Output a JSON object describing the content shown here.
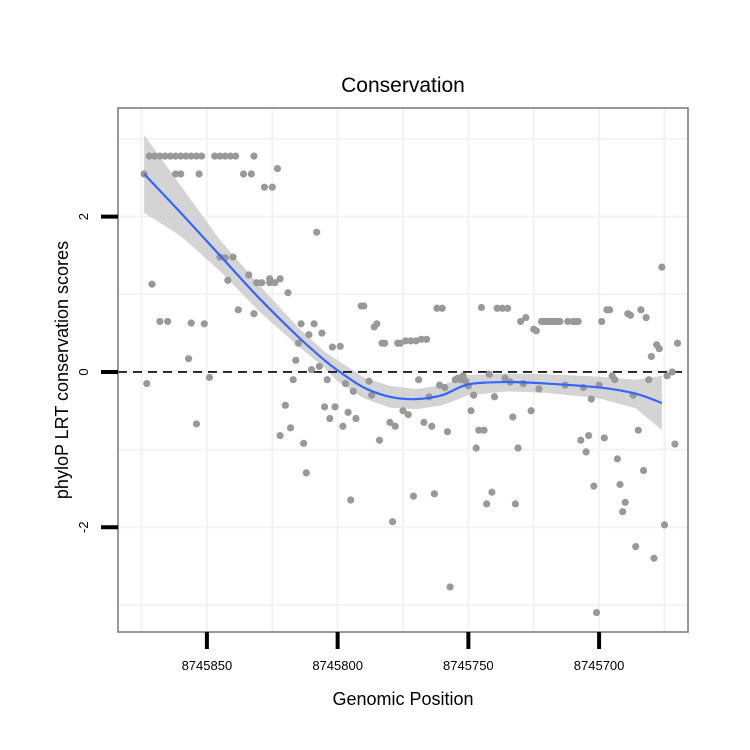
{
  "chart_data": {
    "type": "scatter",
    "title": "Conservation",
    "xlabel": "Genomic Position",
    "ylabel": "phyloP LRT conservation scores",
    "x_reversed": true,
    "xlim": [
      8745884,
      8745666
    ],
    "ylim": [
      -3.35,
      3.4
    ],
    "x_ticks": [
      8745850,
      8745800,
      8745750,
      8745700
    ],
    "x_tick_labels": [
      "8745850",
      "8745800",
      "8745750",
      "8745700"
    ],
    "y_ticks": [
      -2,
      0,
      2
    ],
    "y_tick_labels": [
      "-2",
      "0",
      "2"
    ],
    "grid": true,
    "reference_line": {
      "y": 0,
      "style": "dashed"
    },
    "colors": {
      "points": "#999999",
      "smooth": "#3366FF",
      "band": "#cccccc",
      "grid": "#f2f2f2",
      "border": "#7f7f7f"
    },
    "smooth": {
      "x": [
        8745874,
        8745860,
        8745845,
        8745830,
        8745815,
        8745805,
        8745800,
        8745790,
        8745780,
        8745770,
        8745760,
        8745750,
        8745735,
        8745720,
        8745700,
        8745686,
        8745676
      ],
      "y": [
        2.55,
        2.05,
        1.5,
        0.95,
        0.45,
        0.15,
        0.02,
        -0.2,
        -0.32,
        -0.35,
        -0.3,
        -0.16,
        -0.13,
        -0.15,
        -0.2,
        -0.28,
        -0.4
      ],
      "lower": [
        2.05,
        1.75,
        1.3,
        0.78,
        0.33,
        0.05,
        -0.12,
        -0.34,
        -0.46,
        -0.48,
        -0.43,
        -0.3,
        -0.25,
        -0.27,
        -0.34,
        -0.47,
        -0.75
      ],
      "upper": [
        3.05,
        2.4,
        1.7,
        1.12,
        0.57,
        0.26,
        0.15,
        -0.07,
        -0.18,
        -0.22,
        -0.17,
        -0.04,
        -0.02,
        -0.03,
        -0.06,
        -0.1,
        -0.05
      ]
    },
    "points": [
      [
        8745874,
        2.55
      ],
      [
        8745872,
        2.78
      ],
      [
        8745870,
        2.78
      ],
      [
        8745868,
        2.78
      ],
      [
        8745866,
        2.78
      ],
      [
        8745864,
        2.78
      ],
      [
        8745862,
        2.78
      ],
      [
        8745860,
        2.78
      ],
      [
        8745858,
        2.78
      ],
      [
        8745856,
        2.78
      ],
      [
        8745854,
        2.78
      ],
      [
        8745852,
        2.78
      ],
      [
        8745847,
        2.78
      ],
      [
        8745845,
        2.78
      ],
      [
        8745843,
        2.78
      ],
      [
        8745841,
        2.78
      ],
      [
        8745839,
        2.78
      ],
      [
        8745832,
        2.78
      ],
      [
        8745873,
        -0.15
      ],
      [
        8745871,
        1.13
      ],
      [
        8745868,
        0.65
      ],
      [
        8745865,
        0.65
      ],
      [
        8745862,
        2.55
      ],
      [
        8745860,
        2.55
      ],
      [
        8745857,
        0.17
      ],
      [
        8745856,
        0.63
      ],
      [
        8745854,
        -0.67
      ],
      [
        8745853,
        2.55
      ],
      [
        8745851,
        0.62
      ],
      [
        8745849,
        -0.07
      ],
      [
        8745845,
        1.48
      ],
      [
        8745843,
        1.47
      ],
      [
        8745842,
        1.18
      ],
      [
        8745840,
        1.48
      ],
      [
        8745838,
        0.8
      ],
      [
        8745836,
        2.55
      ],
      [
        8745834,
        1.25
      ],
      [
        8745833,
        2.55
      ],
      [
        8745832,
        0.75
      ],
      [
        8745831,
        1.15
      ],
      [
        8745829,
        1.15
      ],
      [
        8745828,
        2.38
      ],
      [
        8745826,
        1.15
      ],
      [
        8745826,
        1.2
      ],
      [
        8745825,
        2.38
      ],
      [
        8745824,
        1.15
      ],
      [
        8745823,
        2.62
      ],
      [
        8745822,
        1.2
      ],
      [
        8745822,
        -0.82
      ],
      [
        8745820,
        -0.43
      ],
      [
        8745819,
        1.02
      ],
      [
        8745818,
        -0.72
      ],
      [
        8745817,
        -0.1
      ],
      [
        8745816,
        0.15
      ],
      [
        8745815,
        0.37
      ],
      [
        8745814,
        0.62
      ],
      [
        8745813,
        -0.92
      ],
      [
        8745812,
        -1.3
      ],
      [
        8745811,
        0.48
      ],
      [
        8745810,
        0.03
      ],
      [
        8745809,
        0.62
      ],
      [
        8745808,
        1.8
      ],
      [
        8745807,
        0.07
      ],
      [
        8745806,
        0.5
      ],
      [
        8745805,
        -0.45
      ],
      [
        8745804,
        -0.1
      ],
      [
        8745803,
        -0.6
      ],
      [
        8745802,
        0.32
      ],
      [
        8745801,
        -0.45
      ],
      [
        8745799,
        0.33
      ],
      [
        8745798,
        -0.7
      ],
      [
        8745797,
        -0.15
      ],
      [
        8745796,
        -0.52
      ],
      [
        8745795,
        -1.65
      ],
      [
        8745794,
        -0.25
      ],
      [
        8745793,
        -0.6
      ],
      [
        8745791,
        0.85
      ],
      [
        8745790,
        0.85
      ],
      [
        8745788,
        -0.12
      ],
      [
        8745787,
        -0.3
      ],
      [
        8745786,
        0.58
      ],
      [
        8745785,
        0.62
      ],
      [
        8745784,
        -0.88
      ],
      [
        8745783,
        0.37
      ],
      [
        8745782,
        0.37
      ],
      [
        8745780,
        -0.65
      ],
      [
        8745779,
        -1.93
      ],
      [
        8745778,
        -0.7
      ],
      [
        8745777,
        0.37
      ],
      [
        8745776,
        0.37
      ],
      [
        8745775,
        -0.5
      ],
      [
        8745774,
        0.4
      ],
      [
        8745773,
        -0.55
      ],
      [
        8745772,
        0.4
      ],
      [
        8745771,
        -1.6
      ],
      [
        8745770,
        0.4
      ],
      [
        8745769,
        -0.1
      ],
      [
        8745768,
        0.42
      ],
      [
        8745767,
        -0.65
      ],
      [
        8745766,
        0.42
      ],
      [
        8745765,
        -0.32
      ],
      [
        8745764,
        -0.7
      ],
      [
        8745763,
        -1.57
      ],
      [
        8745762,
        0.82
      ],
      [
        8745761,
        -0.17
      ],
      [
        8745760,
        0.82
      ],
      [
        8745759,
        -0.2
      ],
      [
        8745758,
        -0.77
      ],
      [
        8745757,
        -2.77
      ],
      [
        8745755,
        -0.1
      ],
      [
        8745754,
        -0.08
      ],
      [
        8745753,
        -0.1
      ],
      [
        8745752,
        -0.05
      ],
      [
        8745751,
        -0.12
      ],
      [
        8745750,
        -0.18
      ],
      [
        8745749,
        -0.5
      ],
      [
        8745748,
        -0.3
      ],
      [
        8745747,
        -0.98
      ],
      [
        8745746,
        -0.75
      ],
      [
        8745745,
        0.83
      ],
      [
        8745744,
        -0.75
      ],
      [
        8745743,
        -1.7
      ],
      [
        8745742,
        -0.03
      ],
      [
        8745741,
        -1.55
      ],
      [
        8745740,
        -0.32
      ],
      [
        8745739,
        0.82
      ],
      [
        8745737,
        0.82
      ],
      [
        8745735,
        0.82
      ],
      [
        8745736,
        -0.08
      ],
      [
        8745734,
        -0.13
      ],
      [
        8745733,
        -0.58
      ],
      [
        8745732,
        -1.7
      ],
      [
        8745731,
        -0.98
      ],
      [
        8745730,
        0.65
      ],
      [
        8745729,
        -0.15
      ],
      [
        8745728,
        0.7
      ],
      [
        8745726,
        -0.5
      ],
      [
        8745725,
        0.55
      ],
      [
        8745724,
        0.53
      ],
      [
        8745723,
        -0.22
      ],
      [
        8745722,
        0.65
      ],
      [
        8745721,
        0.65
      ],
      [
        8745720,
        0.65
      ],
      [
        8745719,
        0.65
      ],
      [
        8745718,
        0.65
      ],
      [
        8745717,
        0.65
      ],
      [
        8745716,
        0.65
      ],
      [
        8745715,
        0.65
      ],
      [
        8745713,
        -0.17
      ],
      [
        8745712,
        0.65
      ],
      [
        8745710,
        0.65
      ],
      [
        8745709,
        0.65
      ],
      [
        8745708,
        0.65
      ],
      [
        8745707,
        -0.88
      ],
      [
        8745706,
        -0.2
      ],
      [
        8745705,
        -1.03
      ],
      [
        8745704,
        -0.82
      ],
      [
        8745703,
        -0.35
      ],
      [
        8745702,
        -1.47
      ],
      [
        8745701,
        -3.1
      ],
      [
        8745700,
        -0.17
      ],
      [
        8745699,
        0.65
      ],
      [
        8745698,
        -0.85
      ],
      [
        8745697,
        0.8
      ],
      [
        8745696,
        0.8
      ],
      [
        8745695,
        -0.05
      ],
      [
        8745694,
        -0.1
      ],
      [
        8745693,
        -1.12
      ],
      [
        8745692,
        -1.45
      ],
      [
        8745691,
        -1.8
      ],
      [
        8745690,
        -1.68
      ],
      [
        8745689,
        0.75
      ],
      [
        8745688,
        0.73
      ],
      [
        8745687,
        -0.3
      ],
      [
        8745686,
        -2.25
      ],
      [
        8745685,
        -0.75
      ],
      [
        8745684,
        0.8
      ],
      [
        8745683,
        -1.27
      ],
      [
        8745682,
        0.7
      ],
      [
        8745681,
        -0.1
      ],
      [
        8745680,
        0.2
      ],
      [
        8745679,
        -2.4
      ],
      [
        8745678,
        0.35
      ],
      [
        8745677,
        0.3
      ],
      [
        8745676,
        1.35
      ],
      [
        8745675,
        -1.97
      ],
      [
        8745674,
        -0.05
      ],
      [
        8745672,
        0.0
      ],
      [
        8745671,
        -0.93
      ],
      [
        8745670,
        0.37
      ]
    ]
  }
}
